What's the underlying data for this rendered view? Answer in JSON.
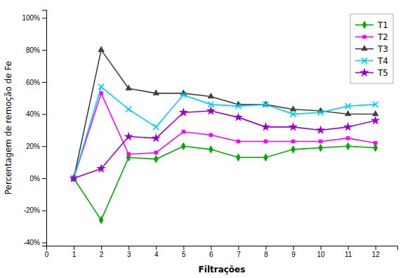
{
  "chart_data": {
    "type": "line",
    "x": [
      1,
      2,
      3,
      4,
      5,
      6,
      7,
      8,
      9,
      10,
      11,
      12
    ],
    "series": [
      {
        "name": "T1",
        "color": "#00AA00",
        "marker": "diamond",
        "values": [
          0.0,
          -0.26,
          0.13,
          0.12,
          0.2,
          0.18,
          0.13,
          0.13,
          0.18,
          0.19,
          0.2,
          0.19
        ]
      },
      {
        "name": "T2",
        "color": "#FF00FF",
        "marker": "square",
        "values": [
          0.0,
          0.53,
          0.15,
          0.16,
          0.29,
          0.27,
          0.23,
          0.23,
          0.23,
          0.23,
          0.25,
          0.22
        ]
      },
      {
        "name": "T3",
        "color": "#404040",
        "marker": "triangle",
        "values": [
          0.0,
          0.8,
          0.56,
          0.53,
          0.53,
          0.51,
          0.46,
          0.46,
          0.43,
          0.42,
          0.4,
          0.4
        ]
      },
      {
        "name": "T4",
        "color": "#00CCFF",
        "marker": "x",
        "values": [
          0.0,
          0.57,
          0.43,
          0.32,
          0.52,
          0.46,
          0.45,
          0.46,
          0.4,
          0.41,
          0.45,
          0.46
        ]
      },
      {
        "name": "T5",
        "color": "#9900CC",
        "marker": "star",
        "values": [
          0.0,
          0.06,
          0.26,
          0.25,
          0.41,
          0.42,
          0.38,
          0.32,
          0.32,
          0.3,
          0.32,
          0.36
        ]
      }
    ],
    "x_label": "Filtrações",
    "y_label": "Percentagem de remoção de Fe",
    "xlim": [
      0,
      12.8
    ],
    "ylim": [
      -0.42,
      1.05
    ],
    "xticks": [
      0,
      1,
      2,
      3,
      4,
      5,
      6,
      7,
      8,
      9,
      10,
      11,
      12
    ],
    "yticks": [
      {
        "value": -0.4,
        "label": "-40%"
      },
      {
        "value": -0.2,
        "label": "-20%"
      },
      {
        "value": 0.0,
        "label": "0%"
      },
      {
        "value": 0.2,
        "label": "20%"
      },
      {
        "value": 0.4,
        "label": "40%"
      },
      {
        "value": 0.6,
        "label": "60%"
      },
      {
        "value": 0.8,
        "label": "80%"
      },
      {
        "value": 1.0,
        "label": "100%"
      }
    ],
    "grid": false,
    "legend": "upper right"
  }
}
